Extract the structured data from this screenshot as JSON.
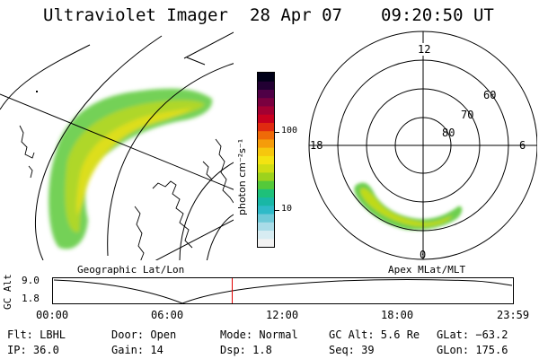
{
  "header": {
    "instrument": "Ultraviolet Imager",
    "date": "28 Apr 07",
    "time": "09:20:50 UT"
  },
  "panels": {
    "left_label": "Geographic Lat/Lon",
    "right_label": "Apex MLat/MLT"
  },
  "colorbar": {
    "label": "photon cm⁻²s⁻¹",
    "ticks": [
      "100",
      "10"
    ],
    "scale": "log",
    "colors": [
      "#f2f2f2",
      "#d7ecf2",
      "#a9dce8",
      "#6fcad8",
      "#2fbac8",
      "#19b7a6",
      "#1ec07a",
      "#54c93a",
      "#9dd21d",
      "#cfdd14",
      "#f3e312",
      "#f6c70e",
      "#f59c0a",
      "#ef6a08",
      "#e02a10",
      "#c8001f",
      "#a30032",
      "#7a003f",
      "#4f0046",
      "#220033",
      "#000018"
    ]
  },
  "polar": {
    "mlt_labels": [
      "12",
      "18",
      "6",
      "0"
    ],
    "mlat_labels": [
      "60",
      "70",
      "80"
    ]
  },
  "altitude_plot": {
    "ylabel": "GC Alt",
    "ytick_labels": [
      "9.0",
      "1.8"
    ],
    "xtick_labels": [
      "00:00",
      "06:00",
      "12:00",
      "18:00",
      "23:59"
    ],
    "marker_time": "09:20:50",
    "marker_color": "#e00000"
  },
  "status": {
    "filter": "Flt: LBHL",
    "ip": "IP: 36.0",
    "door": "Door: Open",
    "gain": "Gain: 14",
    "mode": "Mode: Normal",
    "dsp": "Dsp:   1.8",
    "gc_alt": "GC Alt: 5.6 Re",
    "seq": "Seq: 39",
    "glat": "GLat: −63.2",
    "glon": "GLon: 175.6"
  }
}
